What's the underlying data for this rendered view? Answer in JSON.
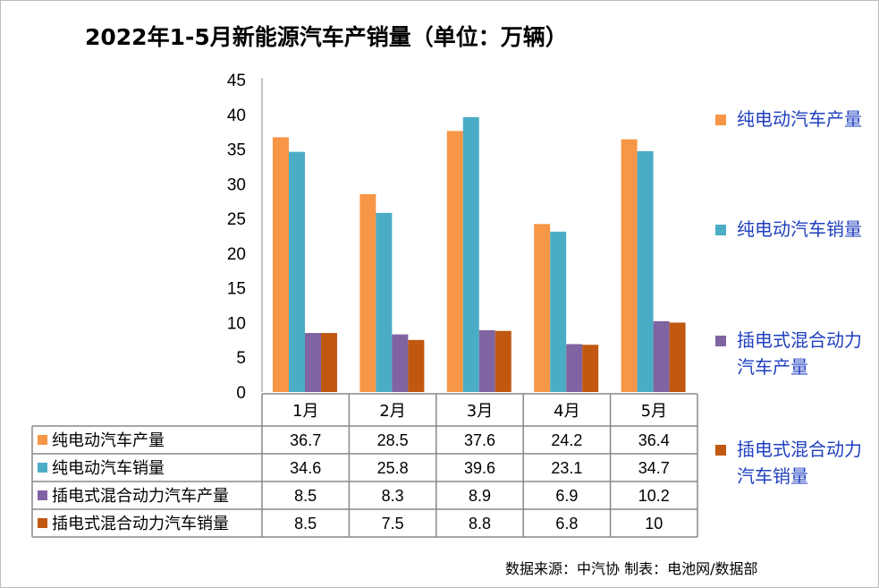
{
  "title": "2022年1-5月新能源汽车产销量（单位：万辆）",
  "source": "数据来源：中汽协  制表：电池网/数据部",
  "chart_data": {
    "type": "bar",
    "title": "2022年1-5月新能源汽车产销量（单位：万辆）",
    "categories": [
      "1月",
      "2月",
      "3月",
      "4月",
      "5月"
    ],
    "ylim": [
      0,
      45
    ],
    "yticks": [
      0,
      5,
      10,
      15,
      20,
      25,
      30,
      35,
      40,
      45
    ],
    "grid": false,
    "legend": "right",
    "data_table": true,
    "series": [
      {
        "name": "纯电动汽车产量",
        "color": "#f79646",
        "values": [
          36.7,
          28.5,
          37.6,
          24.2,
          36.4
        ],
        "labels": [
          "36.7",
          "28.5",
          "37.6",
          "24.2",
          "36.4"
        ]
      },
      {
        "name": "纯电动汽车销量",
        "color": "#4bacc6",
        "values": [
          34.6,
          25.8,
          39.6,
          23.1,
          34.7
        ],
        "labels": [
          "34.6",
          "25.8",
          "39.6",
          "23.1",
          "34.7"
        ]
      },
      {
        "name": "插电式混合动力汽车产量",
        "color": "#8064a2",
        "values": [
          8.5,
          8.3,
          8.9,
          6.9,
          10.2
        ],
        "labels": [
          "8.5",
          "8.3",
          "8.9",
          "6.9",
          "10.2"
        ]
      },
      {
        "name": "插电式混合动力汽车销量",
        "color": "#c0580f",
        "values": [
          8.5,
          7.5,
          8.8,
          6.8,
          10
        ],
        "labels": [
          "8.5",
          "7.5",
          "8.8",
          "6.8",
          "10"
        ]
      }
    ]
  },
  "legend_labels": [
    "纯电动汽车产量",
    "纯电动汽车销量",
    "插电式混合动力汽车产量",
    "插电式混合动力汽车销量"
  ]
}
